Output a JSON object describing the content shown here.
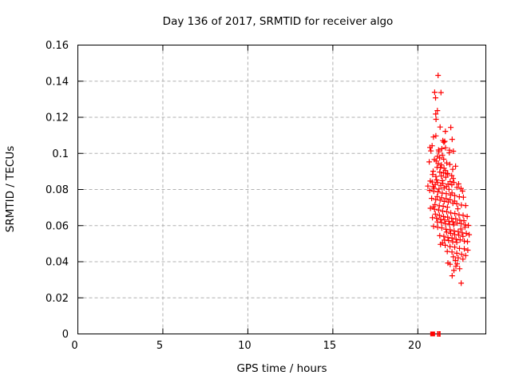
{
  "chart_data": {
    "type": "scatter",
    "title": "Day 136 of 2017, SRMTID for receiver algo",
    "xlabel": "GPS time / hours",
    "ylabel": "SRMTID / TECUs",
    "xlim": [
      0,
      24
    ],
    "ylim": [
      0,
      0.16
    ],
    "grid": true,
    "legend_position": "none",
    "xticks": [
      {
        "v": 0,
        "label": "0"
      },
      {
        "v": 5,
        "label": "5"
      },
      {
        "v": 10,
        "label": "10"
      },
      {
        "v": 15,
        "label": "15"
      },
      {
        "v": 20,
        "label": "20"
      }
    ],
    "yticks": [
      {
        "v": 0.0,
        "label": "0"
      },
      {
        "v": 0.02,
        "label": "0.02"
      },
      {
        "v": 0.04,
        "label": "0.04"
      },
      {
        "v": 0.06,
        "label": "0.06"
      },
      {
        "v": 0.08,
        "label": "0.08"
      },
      {
        "v": 0.1,
        "label": "0.1"
      },
      {
        "v": 0.12,
        "label": "0.12"
      },
      {
        "v": 0.14,
        "label": "0.14"
      },
      {
        "v": 0.16,
        "label": "0.16"
      }
    ],
    "colors": {
      "point": "#ff0000",
      "grid": "#b0b0b0",
      "axis": "#000000",
      "text": "#000000",
      "background": "#ffffff"
    },
    "marker": "plus",
    "series": [
      {
        "name": "SRMTID",
        "points": [
          [
            21.19,
            0.1432
          ],
          [
            20.99,
            0.1339
          ],
          [
            21.36,
            0.1337
          ],
          [
            21.04,
            0.1308
          ],
          [
            21.15,
            0.1237
          ],
          [
            21.05,
            0.1218
          ],
          [
            21.07,
            0.1189
          ],
          [
            21.31,
            0.1146
          ],
          [
            21.94,
            0.1144
          ],
          [
            21.62,
            0.1122
          ],
          [
            21.06,
            0.1097
          ],
          [
            20.92,
            0.1091
          ],
          [
            22.02,
            0.1078
          ],
          [
            21.47,
            0.1071
          ],
          [
            21.53,
            0.1062
          ],
          [
            21.58,
            0.1067
          ],
          [
            20.84,
            0.1042
          ],
          [
            20.71,
            0.1033
          ],
          [
            21.63,
            0.1031
          ],
          [
            21.86,
            0.1018
          ],
          [
            22.09,
            0.1012
          ],
          [
            21.24,
            0.1009
          ],
          [
            20.77,
            0.1014
          ],
          [
            21.22,
            0.1019
          ],
          [
            21.85,
            0.1004
          ],
          [
            21.41,
            0.1026
          ],
          [
            21.28,
            0.0975
          ],
          [
            21.52,
            0.0968
          ],
          [
            21.2,
            0.0944
          ],
          [
            21.39,
            0.0936
          ],
          [
            21.33,
            0.0921
          ],
          [
            21.13,
            0.0923
          ],
          [
            21.54,
            0.0918
          ],
          [
            22.22,
            0.0929
          ],
          [
            20.9,
            0.0901
          ],
          [
            21.29,
            0.0897
          ],
          [
            21.51,
            0.0892
          ],
          [
            21.76,
            0.0886
          ],
          [
            21.99,
            0.0877
          ],
          [
            20.67,
            0.0953
          ],
          [
            20.97,
            0.0966
          ],
          [
            21.7,
            0.0947
          ],
          [
            22.05,
            0.0912
          ],
          [
            21.08,
            0.0958
          ],
          [
            21.62,
            0.0905
          ],
          [
            21.88,
            0.0939
          ],
          [
            21.16,
            0.0984
          ],
          [
            21.44,
            0.099
          ],
          [
            20.85,
            0.0841
          ],
          [
            21.16,
            0.0838
          ],
          [
            21.47,
            0.0833
          ],
          [
            21.78,
            0.083
          ],
          [
            20.59,
            0.0819
          ],
          [
            20.9,
            0.0817
          ],
          [
            22.3,
            0.0812
          ],
          [
            22.54,
            0.0806
          ],
          [
            21.02,
            0.0828
          ],
          [
            21.35,
            0.0823
          ],
          [
            21.68,
            0.0817
          ],
          [
            22.0,
            0.0826
          ],
          [
            20.73,
            0.0847
          ],
          [
            21.1,
            0.0853
          ],
          [
            21.44,
            0.0849
          ],
          [
            21.9,
            0.0844
          ],
          [
            22.12,
            0.0839
          ],
          [
            20.95,
            0.0807
          ],
          [
            21.25,
            0.0803
          ],
          [
            21.55,
            0.0809
          ],
          [
            21.83,
            0.0801
          ],
          [
            22.4,
            0.0831
          ],
          [
            21.06,
            0.0872
          ],
          [
            21.38,
            0.0875
          ],
          [
            21.64,
            0.0868
          ],
          [
            22.08,
            0.0861
          ],
          [
            21.73,
            0.0889
          ],
          [
            20.87,
            0.0883
          ],
          [
            20.7,
            0.0795
          ],
          [
            20.94,
            0.079
          ],
          [
            21.18,
            0.0787
          ],
          [
            21.43,
            0.078
          ],
          [
            21.67,
            0.0777
          ],
          [
            21.92,
            0.077
          ],
          [
            22.17,
            0.0767
          ],
          [
            22.44,
            0.076
          ],
          [
            22.68,
            0.0757
          ],
          [
            20.81,
            0.0751
          ],
          [
            21.05,
            0.0744
          ],
          [
            21.31,
            0.0741
          ],
          [
            21.55,
            0.0734
          ],
          [
            21.79,
            0.0731
          ],
          [
            22.06,
            0.0724
          ],
          [
            22.29,
            0.0721
          ],
          [
            22.56,
            0.0714
          ],
          [
            22.81,
            0.0711
          ],
          [
            20.91,
            0.0704
          ],
          [
            21.14,
            0.0761
          ],
          [
            21.4,
            0.0754
          ],
          [
            21.66,
            0.0749
          ],
          [
            21.89,
            0.0743
          ],
          [
            22.16,
            0.0736
          ],
          [
            21.01,
            0.0717
          ],
          [
            21.26,
            0.071
          ],
          [
            21.49,
            0.0707
          ],
          [
            21.74,
            0.0702
          ],
          [
            22.01,
            0.0781
          ],
          [
            22.63,
            0.0791
          ],
          [
            20.74,
            0.0696
          ],
          [
            20.98,
            0.0691
          ],
          [
            21.22,
            0.0687
          ],
          [
            21.46,
            0.068
          ],
          [
            21.7,
            0.0677
          ],
          [
            21.94,
            0.067
          ],
          [
            22.18,
            0.0667
          ],
          [
            22.42,
            0.066
          ],
          [
            22.66,
            0.0657
          ],
          [
            22.9,
            0.065
          ],
          [
            20.86,
            0.0644
          ],
          [
            21.1,
            0.0641
          ],
          [
            21.34,
            0.0634
          ],
          [
            21.58,
            0.0631
          ],
          [
            21.82,
            0.0624
          ],
          [
            22.06,
            0.0621
          ],
          [
            22.31,
            0.0614
          ],
          [
            22.55,
            0.0611
          ],
          [
            22.79,
            0.0604
          ],
          [
            22.97,
            0.0601
          ],
          [
            21.03,
            0.0664
          ],
          [
            21.27,
            0.0657
          ],
          [
            21.51,
            0.065
          ],
          [
            21.75,
            0.0647
          ],
          [
            21.99,
            0.064
          ],
          [
            22.23,
            0.0637
          ],
          [
            22.47,
            0.063
          ],
          [
            22.71,
            0.0627
          ],
          [
            21.15,
            0.062
          ],
          [
            21.39,
            0.0617
          ],
          [
            21.63,
            0.061
          ],
          [
            21.87,
            0.0607
          ],
          [
            22.11,
            0.0604
          ],
          [
            22.35,
            0.0693
          ],
          [
            20.93,
            0.0596
          ],
          [
            21.17,
            0.0591
          ],
          [
            21.41,
            0.0587
          ],
          [
            21.65,
            0.058
          ],
          [
            21.89,
            0.0577
          ],
          [
            22.13,
            0.057
          ],
          [
            22.37,
            0.0567
          ],
          [
            22.61,
            0.056
          ],
          [
            22.85,
            0.0557
          ],
          [
            23.02,
            0.055
          ],
          [
            21.29,
            0.0544
          ],
          [
            21.53,
            0.0541
          ],
          [
            21.77,
            0.0534
          ],
          [
            22.01,
            0.0531
          ],
          [
            22.25,
            0.0524
          ],
          [
            22.49,
            0.0521
          ],
          [
            22.73,
            0.0514
          ],
          [
            22.92,
            0.0511
          ],
          [
            21.45,
            0.0504
          ],
          [
            21.69,
            0.0564
          ],
          [
            21.93,
            0.0557
          ],
          [
            22.17,
            0.055
          ],
          [
            22.41,
            0.0547
          ],
          [
            22.65,
            0.054
          ],
          [
            21.57,
            0.052
          ],
          [
            21.81,
            0.0517
          ],
          [
            22.05,
            0.051
          ],
          [
            22.29,
            0.0507
          ],
          [
            22.53,
            0.0581
          ],
          [
            22.77,
            0.0591
          ],
          [
            21.33,
            0.0496
          ],
          [
            21.61,
            0.0491
          ],
          [
            21.89,
            0.0484
          ],
          [
            22.17,
            0.0481
          ],
          [
            22.45,
            0.0474
          ],
          [
            22.73,
            0.0471
          ],
          [
            22.94,
            0.0464
          ],
          [
            21.73,
            0.0457
          ],
          [
            22.01,
            0.0454
          ],
          [
            22.29,
            0.0447
          ],
          [
            22.57,
            0.0441
          ],
          [
            22.81,
            0.0434
          ],
          [
            22.09,
            0.0427
          ],
          [
            22.37,
            0.0421
          ],
          [
            22.65,
            0.0414
          ],
          [
            22.21,
            0.0407
          ],
          [
            21.9,
            0.0386
          ],
          [
            22.12,
            0.0352
          ],
          [
            22.02,
            0.0322
          ],
          [
            22.55,
            0.0281
          ],
          [
            22.31,
            0.0388
          ],
          [
            22.46,
            0.0361
          ],
          [
            21.77,
            0.0393
          ],
          [
            22.24,
            0.0375
          ]
        ]
      }
    ],
    "baseline_markers": [
      {
        "x": 20.87,
        "y": 0,
        "shape": "square"
      },
      {
        "x": 21.18,
        "y": 0,
        "shape": "tick"
      },
      {
        "x": 21.29,
        "y": 0,
        "shape": "tick"
      }
    ]
  }
}
